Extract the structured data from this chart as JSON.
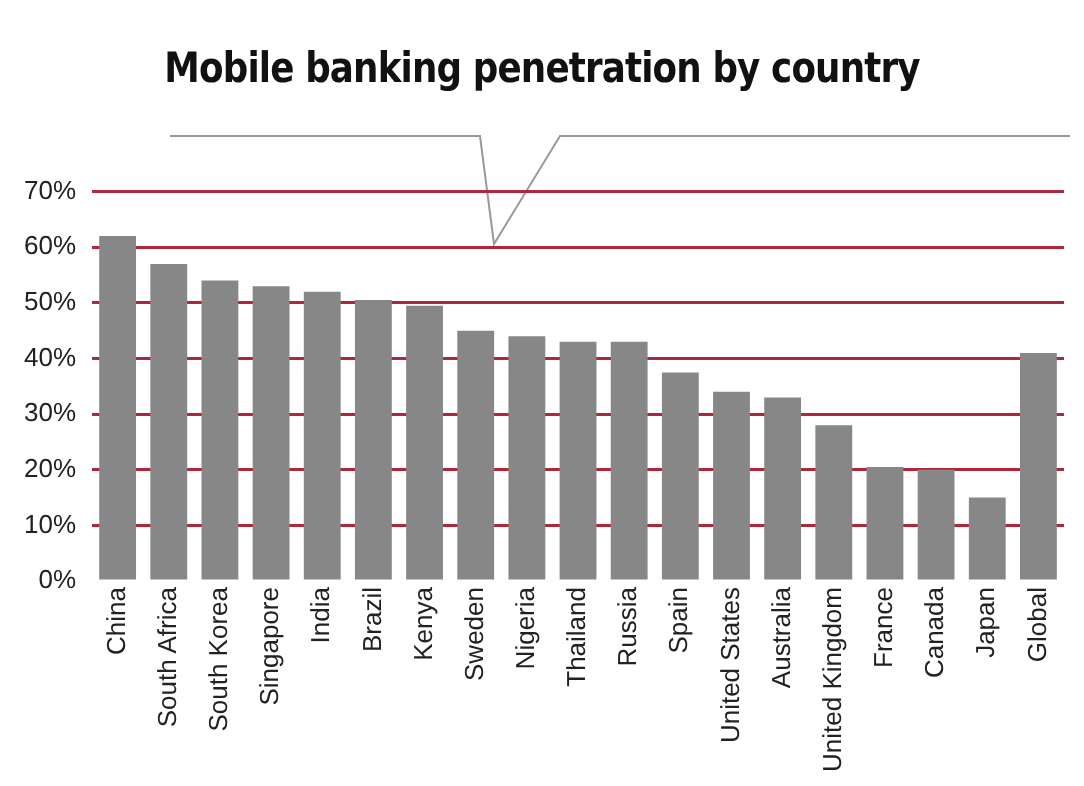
{
  "chart_data": {
    "type": "bar",
    "title": "Mobile banking penetration by country",
    "categories": [
      "China",
      "South Africa",
      "South Korea",
      "Singapore",
      "India",
      "Brazil",
      "Kenya",
      "Sweden",
      "Nigeria",
      "Thailand",
      "Russia",
      "Spain",
      "United States",
      "Australia",
      "United Kingdom",
      "France",
      "Canada",
      "Japan",
      "Global"
    ],
    "values": [
      62,
      57,
      54,
      53,
      52,
      50.5,
      49.5,
      45,
      44,
      43,
      43,
      37.5,
      34,
      33,
      28,
      20.5,
      20,
      15,
      41
    ],
    "color": "#878787",
    "ylim": [
      0,
      70
    ],
    "yticks": [
      {
        "value": 0,
        "label": "0%"
      },
      {
        "value": 10,
        "label": "10%"
      },
      {
        "value": 20,
        "label": "20%"
      },
      {
        "value": 30,
        "label": "30%"
      },
      {
        "value": 40,
        "label": "40%"
      },
      {
        "value": 50,
        "label": "50%"
      },
      {
        "value": 60,
        "label": "60%"
      },
      {
        "value": 70,
        "label": "70%"
      }
    ],
    "grid": "y"
  }
}
